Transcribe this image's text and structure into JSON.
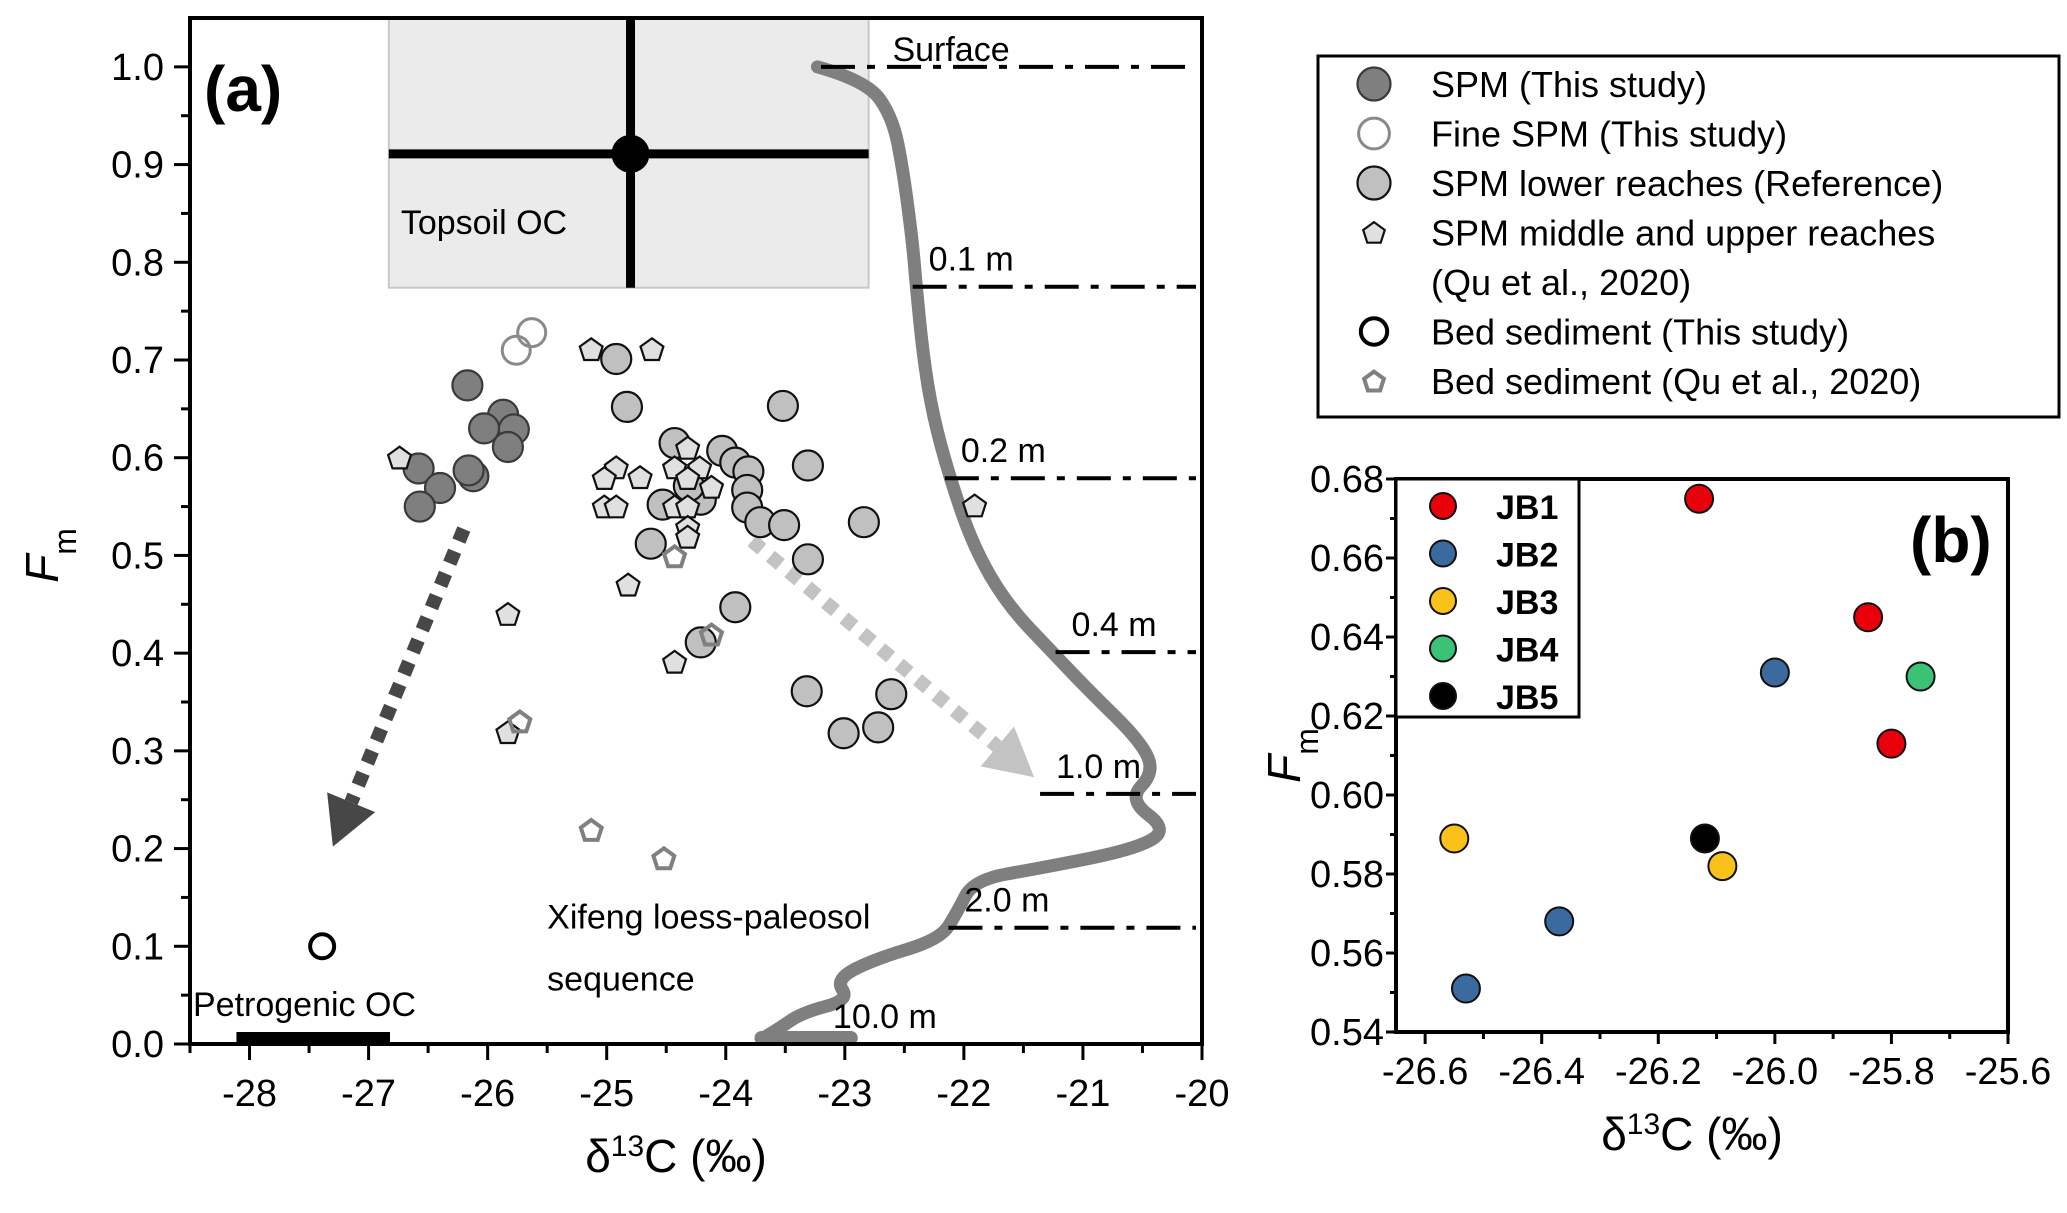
{
  "chart_data": [
    {
      "id": "a",
      "type": "scatter",
      "panel_label": "(a)",
      "xlabel": "δ13C (‰)",
      "xlabel_parts": {
        "delta": "δ",
        "sup": "13",
        "rest": "C (‰)"
      },
      "ylabel": "Fm",
      "ylabel_parts": {
        "main": "F",
        "sub": "m"
      },
      "xlim": [
        -28.5,
        -20
      ],
      "ylim": [
        0,
        1.05
      ],
      "xticks": [
        -28,
        -27,
        -26,
        -25,
        -24,
        -23,
        -22,
        -21,
        -20
      ],
      "xtick_labels": [
        "-28",
        "-27",
        "-26",
        "-25",
        "-24",
        "-23",
        "-22",
        "-21",
        "-20"
      ],
      "yticks": [
        0.0,
        0.1,
        0.2,
        0.3,
        0.4,
        0.5,
        0.6,
        0.7,
        0.8,
        0.9,
        1.0
      ],
      "ytick_labels": [
        "0.0",
        "0.1",
        "0.2",
        "0.3",
        "0.4",
        "0.5",
        "0.6",
        "0.7",
        "0.8",
        "0.9",
        "1.0"
      ],
      "grid": false,
      "series": [
        {
          "name": "SPM (This study)",
          "marker": "circle",
          "fill": "#7f7f7f",
          "stroke": "#3a3a3a",
          "points": [
            [
              -26.17,
              0.674
            ],
            [
              -25.87,
              0.644
            ],
            [
              -26.03,
              0.63
            ],
            [
              -25.78,
              0.629
            ],
            [
              -25.83,
              0.611
            ],
            [
              -26.58,
              0.589
            ],
            [
              -26.4,
              0.569
            ],
            [
              -26.57,
              0.55
            ],
            [
              -26.12,
              0.581
            ],
            [
              -26.16,
              0.587
            ]
          ]
        },
        {
          "name": "Fine SPM (This study)",
          "marker": "open-circle",
          "fill": "none",
          "stroke": "#8a8a8a",
          "points": [
            [
              -25.63,
              0.728
            ],
            [
              -25.76,
              0.71
            ]
          ]
        },
        {
          "name": "SPM lower reaches (Reference)",
          "marker": "circle",
          "fill": "#c0c0c0",
          "stroke": "#111111",
          "points": [
            [
              -24.92,
              0.701
            ],
            [
              -24.83,
              0.652
            ],
            [
              -23.52,
              0.653
            ],
            [
              -24.43,
              0.615
            ],
            [
              -24.03,
              0.607
            ],
            [
              -23.92,
              0.595
            ],
            [
              -23.81,
              0.586
            ],
            [
              -23.82,
              0.567
            ],
            [
              -23.31,
              0.592
            ],
            [
              -24.53,
              0.552
            ],
            [
              -24.21,
              0.557
            ],
            [
              -24.31,
              0.571
            ],
            [
              -23.82,
              0.549
            ],
            [
              -23.71,
              0.534
            ],
            [
              -23.51,
              0.531
            ],
            [
              -24.63,
              0.512
            ],
            [
              -23.31,
              0.496
            ],
            [
              -22.84,
              0.534
            ],
            [
              -23.92,
              0.447
            ],
            [
              -24.21,
              0.411
            ],
            [
              -23.32,
              0.361
            ],
            [
              -22.61,
              0.358
            ],
            [
              -23.01,
              0.318
            ],
            [
              -22.72,
              0.324
            ]
          ]
        },
        {
          "name": "SPM middle and upper reaches (Qu et al., 2020)",
          "marker": "pentagon",
          "fill": "#e0e0e0",
          "stroke": "#111111",
          "points": [
            [
              -26.74,
              0.6
            ],
            [
              -25.13,
              0.711
            ],
            [
              -24.62,
              0.711
            ],
            [
              -24.92,
              0.59
            ],
            [
              -25.02,
              0.579
            ],
            [
              -24.72,
              0.58
            ],
            [
              -25.02,
              0.55
            ],
            [
              -24.92,
              0.55
            ],
            [
              -24.32,
              0.61
            ],
            [
              -24.43,
              0.59
            ],
            [
              -24.22,
              0.59
            ],
            [
              -24.32,
              0.579
            ],
            [
              -24.12,
              0.57
            ],
            [
              -24.43,
              0.55
            ],
            [
              -24.32,
              0.55
            ],
            [
              -24.32,
              0.529
            ],
            [
              -24.32,
              0.519
            ],
            [
              -24.82,
              0.47
            ],
            [
              -25.83,
              0.44
            ],
            [
              -24.43,
              0.391
            ],
            [
              -25.83,
              0.319
            ],
            [
              -21.91,
              0.551
            ]
          ]
        },
        {
          "name": "Bed sediment (This study)",
          "marker": "open-circle-thick",
          "fill": "none",
          "stroke": "#000000",
          "points": [
            [
              -27.39,
              0.1
            ]
          ]
        },
        {
          "name": "Bed sediment (Qu et al., 2020)",
          "marker": "open-pentagon",
          "fill": "none",
          "stroke": "#808080",
          "points": [
            [
              -24.43,
              0.499
            ],
            [
              -24.12,
              0.419
            ],
            [
              -25.73,
              0.33
            ],
            [
              -25.13,
              0.219
            ],
            [
              -24.52,
              0.19
            ]
          ]
        }
      ],
      "legend": {
        "placement": "outside-right-top",
        "entries": [
          {
            "marker": "circle",
            "fill": "#7f7f7f",
            "stroke": "#3a3a3a",
            "label": "SPM (This study)"
          },
          {
            "marker": "open-circle",
            "fill": "none",
            "stroke": "#8a8a8a",
            "label": "Fine SPM (This study)"
          },
          {
            "marker": "circle",
            "fill": "#c0c0c0",
            "stroke": "#111111",
            "label": "SPM lower reaches (Reference)"
          },
          {
            "marker": "pentagon",
            "fill": "#e0e0e0",
            "stroke": "#111111",
            "label": "SPM middle and upper reaches",
            "label2": "(Qu et al., 2020)"
          },
          {
            "marker": "open-circle-thick",
            "fill": "none",
            "stroke": "#000000",
            "label": "Bed sediment (This study)"
          },
          {
            "marker": "open-pentagon",
            "fill": "none",
            "stroke": "#808080",
            "label": "Bed sediment (Qu et al., 2020)"
          }
        ]
      },
      "topsoil_oc": {
        "label": "Topsoil OC",
        "center": [
          -24.8,
          0.911
        ],
        "x_range": [
          -26.83,
          -22.8
        ],
        "y_range": [
          0.774,
          1.05
        ],
        "box_fill": "#ebebeb"
      },
      "petrogenic_oc": {
        "label": "Petrogenic OC",
        "x_range": [
          -28.11,
          -26.82
        ]
      },
      "soil_profile": {
        "label_line1": "Xifeng loess-paleosol",
        "label_line2": "sequence",
        "color": "#7f7f7f",
        "curve": [
          [
            -23.23,
            1.0
          ],
          [
            -22.82,
            0.986
          ],
          [
            -22.6,
            0.949
          ],
          [
            -22.51,
            0.894
          ],
          [
            -22.43,
            0.819
          ],
          [
            -22.4,
            0.775
          ],
          [
            -22.34,
            0.702
          ],
          [
            -22.26,
            0.643
          ],
          [
            -22.12,
            0.58
          ],
          [
            -21.92,
            0.509
          ],
          [
            -21.64,
            0.45
          ],
          [
            -21.25,
            0.4
          ],
          [
            -20.96,
            0.363
          ],
          [
            -20.51,
            0.309
          ],
          [
            -20.4,
            0.278
          ],
          [
            -20.62,
            0.25
          ],
          [
            -20.28,
            0.219
          ],
          [
            -20.57,
            0.199
          ],
          [
            -21.36,
            0.18
          ],
          [
            -21.92,
            0.168
          ],
          [
            -22.06,
            0.134
          ],
          [
            -22.2,
            0.107
          ],
          [
            -22.77,
            0.086
          ],
          [
            -23.08,
            0.066
          ],
          [
            -22.96,
            0.045
          ],
          [
            -23.36,
            0.032
          ],
          [
            -23.55,
            0.016
          ],
          [
            -23.7,
            0.005
          ],
          [
            -22.95,
            0.005
          ]
        ],
        "depth_markers": [
          {
            "label": "Surface",
            "fm": 1.0,
            "x_start": -23.2
          },
          {
            "label": "0.1 m",
            "fm": 0.775,
            "x_start": -22.43
          },
          {
            "label": "0.2 m",
            "fm": 0.579,
            "x_start": -22.16
          },
          {
            "label": "0.4 m",
            "fm": 0.401,
            "x_start": -21.23
          },
          {
            "label": "1.0 m",
            "fm": 0.256,
            "x_start": -21.36
          },
          {
            "label": "2.0 m",
            "fm": 0.119,
            "x_start": -22.13
          },
          {
            "label": "10.0 m",
            "fm": null,
            "x_start": null
          }
        ]
      },
      "arrows": [
        {
          "name": "to-petrogenic",
          "from": [
            -26.2,
            0.527
          ],
          "to": [
            -27.3,
            0.202
          ],
          "color": "#474747"
        },
        {
          "name": "to-deep-soil",
          "from": [
            -23.78,
            0.515
          ],
          "to": [
            -21.41,
            0.273
          ],
          "color": "#c3c3c3"
        }
      ]
    },
    {
      "id": "b",
      "type": "scatter",
      "panel_label": "(b)",
      "xlabel": "δ13C (‰)",
      "xlabel_parts": {
        "delta": "δ",
        "sup": "13",
        "rest": "C (‰)"
      },
      "ylabel": "Fm",
      "ylabel_parts": {
        "main": "F",
        "sub": "m"
      },
      "xlim": [
        -26.65,
        -25.6
      ],
      "ylim": [
        0.54,
        0.68
      ],
      "xticks": [
        -26.6,
        -26.4,
        -26.2,
        -26.0,
        -25.8,
        -25.6
      ],
      "xtick_labels": [
        "-26.6",
        "-26.4",
        "-26.2",
        "-26.0",
        "-25.8",
        "-25.6"
      ],
      "yticks": [
        0.54,
        0.56,
        0.58,
        0.6,
        0.62,
        0.64,
        0.66,
        0.68
      ],
      "ytick_labels": [
        "0.54",
        "0.56",
        "0.58",
        "0.60",
        "0.62",
        "0.64",
        "0.66",
        "0.68"
      ],
      "grid": false,
      "legend_placement": "top-left",
      "series": [
        {
          "name": "JB1",
          "color": "#e8000b",
          "points": [
            [
              -26.13,
              0.675
            ],
            [
              -25.84,
              0.645
            ],
            [
              -25.8,
              0.613
            ]
          ]
        },
        {
          "name": "JB2",
          "color": "#3b6a9e",
          "points": [
            [
              -26.0,
              0.631
            ],
            [
              -26.37,
              0.568
            ],
            [
              -26.53,
              0.551
            ]
          ]
        },
        {
          "name": "JB3",
          "color": "#fbc11b",
          "points": [
            [
              -26.55,
              0.589
            ],
            [
              -26.09,
              0.582
            ]
          ]
        },
        {
          "name": "JB4",
          "color": "#3cc276",
          "points": [
            [
              -25.75,
              0.63
            ]
          ]
        },
        {
          "name": "JB5",
          "color": "#000000",
          "points": [
            [
              -26.12,
              0.589
            ]
          ]
        }
      ]
    }
  ]
}
